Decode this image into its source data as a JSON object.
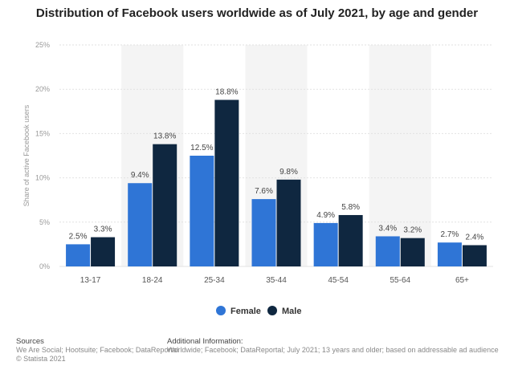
{
  "chart_data": {
    "type": "bar",
    "title": "Distribution of Facebook users worldwide as of July 2021, by age and gender",
    "ylabel": "Share of active Facebook users",
    "xlabel": "",
    "categories": [
      "13-17",
      "18-24",
      "25-34",
      "35-44",
      "45-54",
      "55-64",
      "65+"
    ],
    "series": [
      {
        "name": "Female",
        "values": [
          2.5,
          9.4,
          12.5,
          7.6,
          4.9,
          3.4,
          2.7
        ],
        "labels": [
          "2.5%",
          "9.4%",
          "12.5%",
          "7.6%",
          "4.9%",
          "3.4%",
          "2.7%"
        ],
        "color": "#2f75d6"
      },
      {
        "name": "Male",
        "values": [
          3.3,
          13.8,
          18.8,
          9.8,
          5.8,
          3.2,
          2.4
        ],
        "labels": [
          "3.3%",
          "13.8%",
          "18.8%",
          "9.8%",
          "5.8%",
          "3.2%",
          "2.4%"
        ],
        "color": "#0f2740"
      }
    ],
    "ylim": [
      0,
      25
    ],
    "yticks": [
      0,
      5,
      10,
      15,
      20,
      25
    ],
    "ytick_labels": [
      "0%",
      "5%",
      "10%",
      "15%",
      "20%",
      "25%"
    ],
    "grid": true,
    "legend": "bottom-center"
  },
  "footer": {
    "sources_heading": "Sources",
    "sources_text": "We Are Social; Hootsuite; Facebook; DataReportal",
    "copyright": "© Statista 2021",
    "info_heading": "Additional Information:",
    "info_text": "Worldwide; Facebook; DataReportal; July 2021; 13 years and older; based on addressable ad audience"
  }
}
